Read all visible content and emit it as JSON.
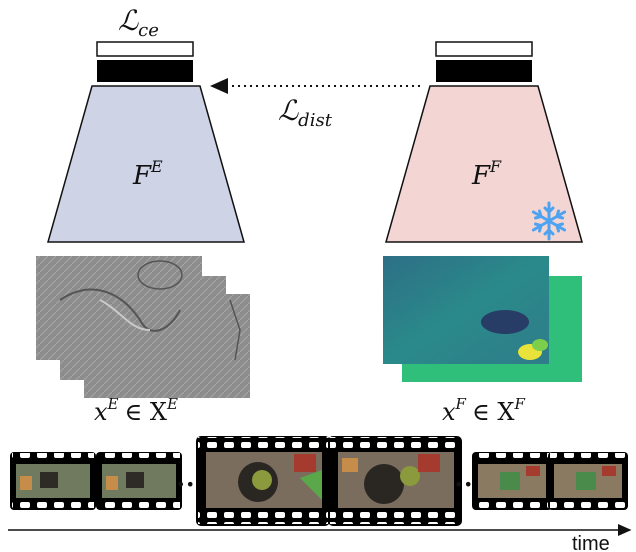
{
  "labels": {
    "ce_loss": "ℒ",
    "ce_loss_sub": "ce",
    "dist_loss": "ℒ",
    "dist_loss_sub": "dist",
    "event_encoder": "F",
    "event_encoder_sup": "E",
    "frame_encoder": "F",
    "frame_encoder_sup": "F",
    "event_input_x": "x",
    "event_input_sup": "E",
    "event_input_in": "∈ X",
    "event_input_set_sup": "E",
    "frame_input_x": "x",
    "frame_input_sup": "F",
    "frame_input_in": "∈ X",
    "frame_input_set_sup": "F",
    "time_label": "time",
    "ellipsis": "•••"
  },
  "colors": {
    "event_encoder_fill": "#ced3e6",
    "frame_encoder_fill": "#f3d5d3",
    "snowflake": "#4da3f0",
    "head_dark": "#000000",
    "event_map": "#8f8f8f",
    "flow_map_a": "#2f7c8a",
    "flow_map_b": "#2fbf7b"
  },
  "icons": {
    "frozen": "snowflake-icon"
  }
}
